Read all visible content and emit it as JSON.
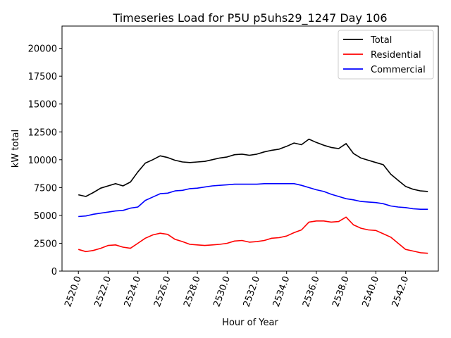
{
  "chart_data": {
    "type": "line",
    "title": "Timeseries Load for P5U p5uhs29_1247  Day 106",
    "xlabel": "Hour of Year",
    "ylabel": "kW total",
    "xlim": [
      2518.9,
      2544.2
    ],
    "ylim": [
      0,
      22000
    ],
    "xticks": [
      2520,
      2522,
      2524,
      2526,
      2528,
      2530,
      2532,
      2534,
      2536,
      2538,
      2540,
      2542
    ],
    "xtick_labels": [
      "2520.0",
      "2522.0",
      "2524.0",
      "2526.0",
      "2528.0",
      "2530.0",
      "2532.0",
      "2534.0",
      "2536.0",
      "2538.0",
      "2540.0",
      "2542.0"
    ],
    "yticks": [
      0,
      2500,
      5000,
      7500,
      10000,
      12500,
      15000,
      17500,
      20000
    ],
    "ytick_labels": [
      "0",
      "2500",
      "5000",
      "7500",
      "10000",
      "12500",
      "15000",
      "17500",
      "20000"
    ],
    "legend_position": "top-right",
    "x": [
      2520.0,
      2520.5,
      2521.0,
      2521.5,
      2522.0,
      2522.5,
      2523.0,
      2523.5,
      2524.0,
      2524.5,
      2525.0,
      2525.5,
      2526.0,
      2526.5,
      2527.0,
      2527.5,
      2528.0,
      2528.5,
      2529.0,
      2529.5,
      2530.0,
      2530.5,
      2531.0,
      2531.5,
      2532.0,
      2532.5,
      2533.0,
      2533.5,
      2534.0,
      2534.5,
      2535.0,
      2535.5,
      2536.0,
      2536.5,
      2537.0,
      2537.5,
      2538.0,
      2538.5,
      2539.0,
      2539.5,
      2540.0,
      2540.5,
      2541.0,
      2541.5,
      2542.0,
      2542.5,
      2543.0,
      2543.5
    ],
    "series": [
      {
        "name": "Total",
        "color": "#000000",
        "values": [
          6850,
          6700,
          7050,
          7450,
          7650,
          7850,
          7650,
          8000,
          8900,
          9700,
          10000,
          10350,
          10200,
          9950,
          9800,
          9750,
          9800,
          9850,
          10000,
          10150,
          10250,
          10450,
          10500,
          10400,
          10500,
          10700,
          10850,
          10950,
          11200,
          11500,
          11350,
          11850,
          11550,
          11300,
          11100,
          11000,
          11450,
          10550,
          10150,
          9950,
          9750,
          9550,
          8700,
          8150,
          7600,
          7350,
          7200,
          7150
        ]
      },
      {
        "name": "Residential",
        "color": "#ff0000",
        "values": [
          1950,
          1750,
          1850,
          2050,
          2300,
          2350,
          2150,
          2050,
          2500,
          2950,
          3250,
          3400,
          3300,
          2850,
          2650,
          2400,
          2350,
          2300,
          2350,
          2400,
          2500,
          2700,
          2750,
          2600,
          2650,
          2750,
          2950,
          3000,
          3150,
          3450,
          3700,
          4400,
          4500,
          4500,
          4400,
          4450,
          4850,
          4150,
          3850,
          3700,
          3650,
          3350,
          3050,
          2500,
          1950,
          1800,
          1650,
          1600
        ]
      },
      {
        "name": "Commercial",
        "color": "#0000ff",
        "values": [
          4900,
          4950,
          5100,
          5200,
          5300,
          5400,
          5450,
          5650,
          5750,
          6350,
          6650,
          6950,
          7000,
          7200,
          7250,
          7400,
          7450,
          7550,
          7650,
          7700,
          7750,
          7800,
          7800,
          7800,
          7800,
          7850,
          7850,
          7850,
          7850,
          7850,
          7700,
          7500,
          7300,
          7150,
          6900,
          6700,
          6500,
          6400,
          6250,
          6200,
          6150,
          6050,
          5850,
          5750,
          5700,
          5600,
          5550,
          5550
        ]
      }
    ]
  }
}
